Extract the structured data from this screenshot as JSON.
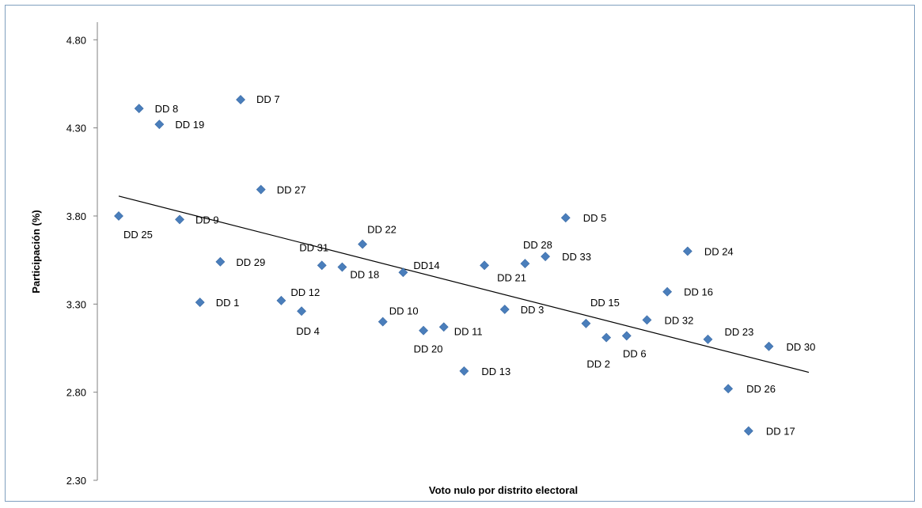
{
  "chart_data": {
    "type": "scatter",
    "title": "",
    "xlabel": "Voto nulo por distrito electoral",
    "ylabel": "Participación (%)",
    "ylim": [
      2.3,
      4.9
    ],
    "y_ticks": [
      "4.80",
      "4.30",
      "3.80",
      "3.30",
      "2.80",
      "2.30"
    ],
    "grid": false,
    "legend": "none",
    "point_color": "#4a7ebb",
    "trendline": true,
    "points": [
      {
        "label": "DD 25",
        "y": 3.8
      },
      {
        "label": "DD 8",
        "y": 4.41
      },
      {
        "label": "DD 19",
        "y": 4.32
      },
      {
        "label": "DD 9",
        "y": 3.78
      },
      {
        "label": "DD 1",
        "y": 3.31
      },
      {
        "label": "DD 29",
        "y": 3.54
      },
      {
        "label": "DD 7",
        "y": 4.46
      },
      {
        "label": "DD 27",
        "y": 3.95
      },
      {
        "label": "DD 12",
        "y": 3.32
      },
      {
        "label": "DD 4",
        "y": 3.26
      },
      {
        "label": "DD 31",
        "y": 3.52
      },
      {
        "label": "DD 18",
        "y": 3.51
      },
      {
        "label": "DD 22",
        "y": 3.64
      },
      {
        "label": "DD 10",
        "y": 3.2
      },
      {
        "label": "DD14",
        "y": 3.48
      },
      {
        "label": "DD 20",
        "y": 3.15
      },
      {
        "label": "DD 11",
        "y": 3.17
      },
      {
        "label": "DD 13",
        "y": 2.92
      },
      {
        "label": "DD 21",
        "y": 3.52
      },
      {
        "label": "DD 3",
        "y": 3.27
      },
      {
        "label": "DD 28",
        "y": 3.53
      },
      {
        "label": "DD 33",
        "y": 3.57
      },
      {
        "label": "DD 5",
        "y": 3.79
      },
      {
        "label": "DD 15",
        "y": 3.19
      },
      {
        "label": "DD 2",
        "y": 3.11
      },
      {
        "label": "DD 6",
        "y": 3.12
      },
      {
        "label": "DD 32",
        "y": 3.21
      },
      {
        "label": "DD 16",
        "y": 3.37
      },
      {
        "label": "DD 24",
        "y": 3.6
      },
      {
        "label": "DD 23",
        "y": 3.1
      },
      {
        "label": "DD 26",
        "y": 2.82
      },
      {
        "label": "DD 17",
        "y": 2.58
      },
      {
        "label": "DD 30",
        "y": 3.06
      }
    ]
  }
}
